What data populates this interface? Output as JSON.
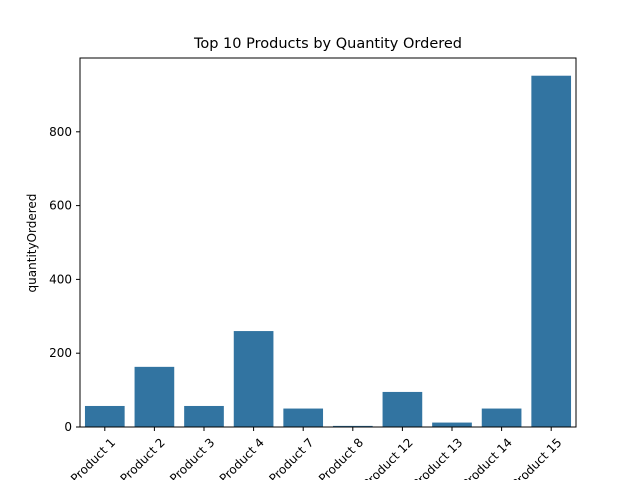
{
  "chart_data": {
    "type": "bar",
    "title": "Top 10 Products by Quantity Ordered",
    "xlabel": "",
    "ylabel": "quantityOrdered",
    "categories": [
      "Product 1",
      "Product 2",
      "Product 3",
      "Product 4",
      "Product 7",
      "Product 8",
      "Product 12",
      "Product 13",
      "Product 14",
      "Product 15"
    ],
    "values": [
      57,
      163,
      57,
      260,
      50,
      3,
      95,
      12,
      50,
      952
    ],
    "ylim": [
      0,
      1000
    ],
    "yticks": [
      0,
      200,
      400,
      600,
      800
    ],
    "bar_color": "#3274a1",
    "grid": false,
    "legend": "none"
  }
}
